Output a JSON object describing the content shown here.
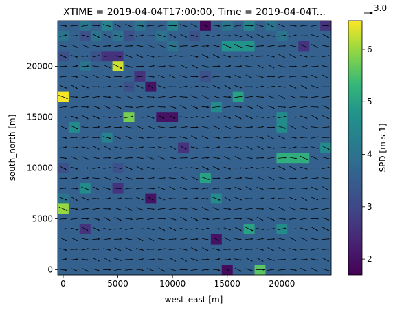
{
  "chart_data": {
    "type": "heatmap",
    "title": "XTIME = 2019-04-04T17:00:00, Time = 2019-04-04T...",
    "xlabel": "west_east [m]",
    "ylabel": "south_north [m]",
    "colorbar_label": "SPD [m s-1]",
    "quiver_key_label": "3.0",
    "x_ticks": [
      0,
      5000,
      10000,
      15000,
      20000
    ],
    "y_ticks": [
      0,
      5000,
      10000,
      15000,
      20000
    ],
    "colorbar_ticks": [
      2,
      3,
      4,
      5,
      6
    ],
    "xlim": [
      -500,
      24500
    ],
    "ylim": [
      -500,
      24500
    ],
    "cell_size_m": 1000,
    "value_range": [
      1.7,
      6.55
    ],
    "colormap": "viridis",
    "grid": false,
    "speed_grid_m_s": [
      [
        3.6,
        3.6,
        4.0,
        3.6,
        4.4,
        3.6,
        3.6,
        4.0,
        3.6,
        3.6,
        4.4,
        3.6,
        3.6,
        1.8,
        3.6,
        4.0,
        3.6,
        4.4,
        3.6,
        4.0,
        3.6,
        3.6,
        3.6,
        3.6,
        2.6
      ],
      [
        4.0,
        3.6,
        3.2,
        4.0,
        3.6,
        4.0,
        3.2,
        3.6,
        3.6,
        4.0,
        3.6,
        3.6,
        3.2,
        3.6,
        3.6,
        3.6,
        3.6,
        3.6,
        3.6,
        3.6,
        4.0,
        3.6,
        3.6,
        3.6,
        3.6
      ],
      [
        3.6,
        3.6,
        3.6,
        3.6,
        3.6,
        3.6,
        3.6,
        3.6,
        3.6,
        3.6,
        4.0,
        3.6,
        3.6,
        3.6,
        3.6,
        4.8,
        4.8,
        4.8,
        3.6,
        3.6,
        3.6,
        3.6,
        2.6,
        3.6,
        3.6
      ],
      [
        3.2,
        3.6,
        3.6,
        3.2,
        2.6,
        2.6,
        3.6,
        3.6,
        3.6,
        3.6,
        3.6,
        3.6,
        3.6,
        3.6,
        3.6,
        3.6,
        3.6,
        3.6,
        3.6,
        3.6,
        3.6,
        3.6,
        3.6,
        3.6,
        3.6
      ],
      [
        3.6,
        3.6,
        4.0,
        3.6,
        3.6,
        6.3,
        3.6,
        3.6,
        3.6,
        3.6,
        3.6,
        3.6,
        3.6,
        3.6,
        3.6,
        3.6,
        3.6,
        3.6,
        3.6,
        3.6,
        3.6,
        3.6,
        3.6,
        3.6,
        3.6
      ],
      [
        3.6,
        3.6,
        3.6,
        3.6,
        3.6,
        3.6,
        3.6,
        2.6,
        3.6,
        3.6,
        3.6,
        3.6,
        3.6,
        3.2,
        3.6,
        3.6,
        3.6,
        3.6,
        3.6,
        3.6,
        3.6,
        3.6,
        3.6,
        3.6,
        3.6
      ],
      [
        3.6,
        3.6,
        3.6,
        3.6,
        3.6,
        3.6,
        3.2,
        3.6,
        2.0,
        3.6,
        3.6,
        3.6,
        3.6,
        3.6,
        3.6,
        3.6,
        3.6,
        3.6,
        3.6,
        3.6,
        3.6,
        3.6,
        3.6,
        3.6,
        3.6
      ],
      [
        6.5,
        3.6,
        3.6,
        3.6,
        3.6,
        3.6,
        3.6,
        3.6,
        3.6,
        3.6,
        3.6,
        3.6,
        3.6,
        3.6,
        3.6,
        3.6,
        5.0,
        3.6,
        3.6,
        3.6,
        3.6,
        3.6,
        3.6,
        3.6,
        3.6
      ],
      [
        3.6,
        3.6,
        3.6,
        3.6,
        3.6,
        3.6,
        3.6,
        3.6,
        3.6,
        3.6,
        3.6,
        3.6,
        3.6,
        3.6,
        4.6,
        3.6,
        3.6,
        3.6,
        3.6,
        3.6,
        3.6,
        3.6,
        3.6,
        3.6,
        3.6
      ],
      [
        3.6,
        3.6,
        3.6,
        3.6,
        3.6,
        3.6,
        5.8,
        3.6,
        3.6,
        2.0,
        2.0,
        3.6,
        3.6,
        3.6,
        3.6,
        3.6,
        3.6,
        3.6,
        3.6,
        3.6,
        4.6,
        3.6,
        3.6,
        3.6,
        3.6
      ],
      [
        3.6,
        4.6,
        3.6,
        3.6,
        3.6,
        3.6,
        3.6,
        3.6,
        3.6,
        3.6,
        3.6,
        3.6,
        3.6,
        3.6,
        3.6,
        3.6,
        3.6,
        3.6,
        3.6,
        3.6,
        4.6,
        3.6,
        3.6,
        3.6,
        3.6
      ],
      [
        3.6,
        3.6,
        3.6,
        3.6,
        4.4,
        3.6,
        3.6,
        3.6,
        3.6,
        3.6,
        3.6,
        3.6,
        3.6,
        3.6,
        3.6,
        3.6,
        3.6,
        3.6,
        3.6,
        3.6,
        3.6,
        3.6,
        3.6,
        3.6,
        3.6
      ],
      [
        3.6,
        3.6,
        3.6,
        3.6,
        3.6,
        3.6,
        3.6,
        3.6,
        3.6,
        3.6,
        3.6,
        2.6,
        3.6,
        3.6,
        3.6,
        3.6,
        3.6,
        3.6,
        3.6,
        3.6,
        3.6,
        3.6,
        3.6,
        3.6,
        4.6
      ],
      [
        3.6,
        3.6,
        3.6,
        3.6,
        3.6,
        3.6,
        3.6,
        3.6,
        3.6,
        3.6,
        3.6,
        3.6,
        3.6,
        3.6,
        3.6,
        3.6,
        3.6,
        3.6,
        3.6,
        3.6,
        5.2,
        5.2,
        5.2,
        3.6,
        3.6
      ],
      [
        3.2,
        3.6,
        3.6,
        3.6,
        3.6,
        3.2,
        3.6,
        3.6,
        3.6,
        3.6,
        3.6,
        3.6,
        3.6,
        3.6,
        3.6,
        3.6,
        3.6,
        3.6,
        3.6,
        3.6,
        3.6,
        3.6,
        3.6,
        3.6,
        3.6
      ],
      [
        3.6,
        3.6,
        3.6,
        3.6,
        3.6,
        3.6,
        3.6,
        3.6,
        3.6,
        3.6,
        3.6,
        3.6,
        3.6,
        5.0,
        3.6,
        3.6,
        3.6,
        3.6,
        3.6,
        3.6,
        3.6,
        3.6,
        3.6,
        3.6,
        3.6
      ],
      [
        3.6,
        3.6,
        4.6,
        3.6,
        3.6,
        2.6,
        3.6,
        3.6,
        3.6,
        3.6,
        3.6,
        3.6,
        3.6,
        3.6,
        3.6,
        3.6,
        3.6,
        3.6,
        3.6,
        3.6,
        3.6,
        3.6,
        3.6,
        3.6,
        3.6
      ],
      [
        4.0,
        3.6,
        3.6,
        3.6,
        3.6,
        3.6,
        3.6,
        3.6,
        2.0,
        3.6,
        3.6,
        3.6,
        3.6,
        3.6,
        4.6,
        3.6,
        3.6,
        3.6,
        3.6,
        3.6,
        3.6,
        3.6,
        3.6,
        3.6,
        3.6
      ],
      [
        6.0,
        3.6,
        3.6,
        3.6,
        3.6,
        3.6,
        3.6,
        3.6,
        3.6,
        3.6,
        3.6,
        3.6,
        3.6,
        3.6,
        3.6,
        3.6,
        3.6,
        3.6,
        3.6,
        3.6,
        3.6,
        3.6,
        3.6,
        3.6,
        3.6
      ],
      [
        3.6,
        3.6,
        3.6,
        3.6,
        3.6,
        3.6,
        3.6,
        3.6,
        3.6,
        3.6,
        3.6,
        3.6,
        3.6,
        3.6,
        3.6,
        3.6,
        3.6,
        3.6,
        3.6,
        3.6,
        3.6,
        3.6,
        3.6,
        3.6,
        3.6
      ],
      [
        3.6,
        3.6,
        2.6,
        3.6,
        3.6,
        3.6,
        3.6,
        3.6,
        3.6,
        3.6,
        3.6,
        3.6,
        3.6,
        3.6,
        3.6,
        3.6,
        3.6,
        5.0,
        3.6,
        3.6,
        4.6,
        3.6,
        3.6,
        3.6,
        3.6
      ],
      [
        3.6,
        3.6,
        3.6,
        3.6,
        3.6,
        3.6,
        3.6,
        3.6,
        3.6,
        3.6,
        3.6,
        3.6,
        3.6,
        3.6,
        2.0,
        3.6,
        3.6,
        3.6,
        3.6,
        3.6,
        3.6,
        3.6,
        3.6,
        3.6,
        3.6
      ],
      [
        3.6,
        3.6,
        3.6,
        3.6,
        3.6,
        3.6,
        3.6,
        3.6,
        3.6,
        3.6,
        3.6,
        3.6,
        3.6,
        3.6,
        3.6,
        3.6,
        3.6,
        3.6,
        3.6,
        3.6,
        3.6,
        3.6,
        3.6,
        3.6,
        3.6
      ],
      [
        3.6,
        3.6,
        3.6,
        3.6,
        3.6,
        3.6,
        3.6,
        3.6,
        3.6,
        3.6,
        3.6,
        3.6,
        3.6,
        3.6,
        3.6,
        3.6,
        3.6,
        3.6,
        3.6,
        3.6,
        3.6,
        3.6,
        3.6,
        3.6,
        3.6
      ],
      [
        3.6,
        3.6,
        3.6,
        3.6,
        3.6,
        3.6,
        3.6,
        3.6,
        3.6,
        3.6,
        3.6,
        3.6,
        3.6,
        3.6,
        3.6,
        1.9,
        3.6,
        3.6,
        5.6,
        3.6,
        3.6,
        3.6,
        3.6,
        3.6,
        3.6
      ]
    ]
  }
}
